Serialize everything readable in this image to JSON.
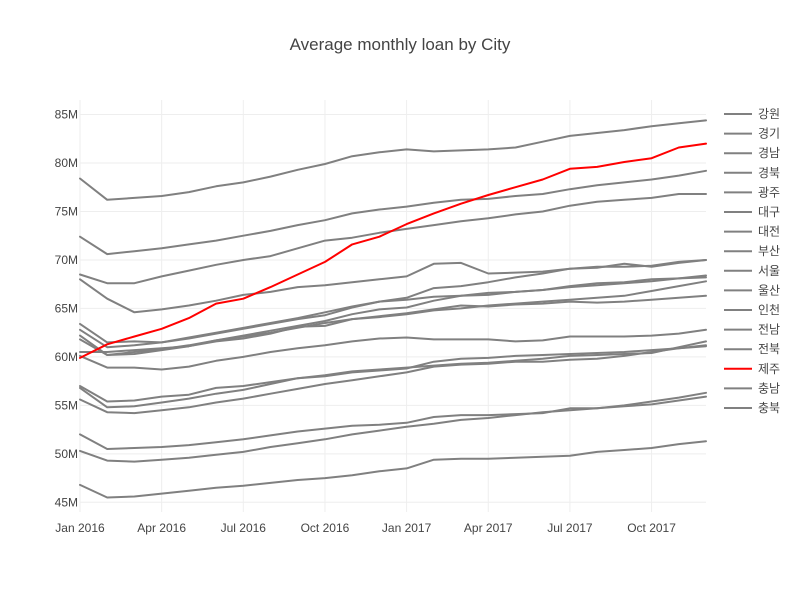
{
  "chart_data": {
    "type": "line",
    "title": "Average monthly loan by City",
    "xlabel": "",
    "ylabel": "",
    "x": [
      "2016-01",
      "2016-02",
      "2016-03",
      "2016-04",
      "2016-05",
      "2016-06",
      "2016-07",
      "2016-08",
      "2016-09",
      "2016-10",
      "2016-11",
      "2016-12",
      "2017-01",
      "2017-02",
      "2017-03",
      "2017-04",
      "2017-05",
      "2017-06",
      "2017-07",
      "2017-08",
      "2017-09",
      "2017-10",
      "2017-11",
      "2017-12"
    ],
    "x_ticks": [
      {
        "x": "2016-01",
        "label": "Jan 2016"
      },
      {
        "x": "2016-04",
        "label": "Apr 2016"
      },
      {
        "x": "2016-07",
        "label": "Jul 2016"
      },
      {
        "x": "2016-10",
        "label": "Oct 2016"
      },
      {
        "x": "2017-01",
        "label": "Jan 2017"
      },
      {
        "x": "2017-04",
        "label": "Apr 2017"
      },
      {
        "x": "2017-07",
        "label": "Jul 2017"
      },
      {
        "x": "2017-10",
        "label": "Oct 2017"
      }
    ],
    "y_ticks": [
      {
        "v": 45,
        "label": "45M"
      },
      {
        "v": 50,
        "label": "50M"
      },
      {
        "v": 55,
        "label": "55M"
      },
      {
        "v": 60,
        "label": "60M"
      },
      {
        "v": 65,
        "label": "65M"
      },
      {
        "v": 70,
        "label": "70M"
      },
      {
        "v": 75,
        "label": "75M"
      },
      {
        "v": 80,
        "label": "80M"
      },
      {
        "v": 85,
        "label": "85M"
      }
    ],
    "y_unit": "M",
    "ylim": [
      44,
      86.5
    ],
    "grid": true,
    "legend_position": "right",
    "colors": {
      "default": "#808080",
      "highlight": "#ff0000"
    },
    "series": [
      {
        "name": "강원",
        "values": [
          78.4,
          76.2,
          76.4,
          76.6,
          77.0,
          77.6,
          78.0,
          78.6,
          79.3,
          79.9,
          80.7,
          81.1,
          81.4,
          81.2,
          81.3,
          81.4,
          81.6,
          82.2,
          82.8,
          83.1,
          83.4,
          83.8,
          84.1,
          84.4
        ]
      },
      {
        "name": "경기",
        "values": [
          72.4,
          70.6,
          70.9,
          71.2,
          71.6,
          72.0,
          72.5,
          73.0,
          73.6,
          74.1,
          74.8,
          75.2,
          75.5,
          75.9,
          76.2,
          76.3,
          76.6,
          76.8,
          77.3,
          77.7,
          78.0,
          78.3,
          78.7,
          79.2
        ]
      },
      {
        "name": "경남",
        "values": [
          68.5,
          67.6,
          67.6,
          68.3,
          68.9,
          69.5,
          70.0,
          70.4,
          71.2,
          72.0,
          72.3,
          72.8,
          73.2,
          73.6,
          74.0,
          74.3,
          74.7,
          75.0,
          75.6,
          76.0,
          76.2,
          76.4,
          76.8,
          76.8
        ]
      },
      {
        "name": "경북",
        "values": [
          68.0,
          66.0,
          64.6,
          64.9,
          65.3,
          65.8,
          66.4,
          66.7,
          67.2,
          67.4,
          67.7,
          68.0,
          68.3,
          69.6,
          69.7,
          68.6,
          68.7,
          68.8,
          69.1,
          69.2,
          69.6,
          69.3,
          69.7,
          70.0
        ]
      },
      {
        "name": "광주",
        "values": [
          63.4,
          61.5,
          61.6,
          61.5,
          61.9,
          62.4,
          62.9,
          63.4,
          63.9,
          64.3,
          65.1,
          65.7,
          66.1,
          67.1,
          67.3,
          67.7,
          68.2,
          68.6,
          69.1,
          69.3,
          69.3,
          69.4,
          69.8,
          70.0
        ]
      },
      {
        "name": "대구",
        "values": [
          62.8,
          61.0,
          61.2,
          61.5,
          62.0,
          62.5,
          63.0,
          63.5,
          64.0,
          64.6,
          65.2,
          65.7,
          65.9,
          66.2,
          66.3,
          66.4,
          66.7,
          66.9,
          67.2,
          67.4,
          67.6,
          67.8,
          68.1,
          68.4
        ]
      },
      {
        "name": "대전",
        "values": [
          62.2,
          60.2,
          60.3,
          60.7,
          61.1,
          61.7,
          62.2,
          62.7,
          63.2,
          63.7,
          64.4,
          64.9,
          65.1,
          65.8,
          66.3,
          66.6,
          66.7,
          66.9,
          67.3,
          67.6,
          67.7,
          68.0,
          68.1,
          68.2
        ]
      },
      {
        "name": "부산",
        "values": [
          61.8,
          60.2,
          60.5,
          60.8,
          61.2,
          61.7,
          62.1,
          62.5,
          63.0,
          63.5,
          63.9,
          64.2,
          64.5,
          64.9,
          65.3,
          65.2,
          65.4,
          65.5,
          65.7,
          65.6,
          65.7,
          65.9,
          66.1,
          66.3
        ]
      },
      {
        "name": "서울",
        "values": [
          60.5,
          60.5,
          60.7,
          60.9,
          61.1,
          61.6,
          61.9,
          62.4,
          63.1,
          63.2,
          63.9,
          64.1,
          64.4,
          64.8,
          65.0,
          65.3,
          65.5,
          65.7,
          65.9,
          66.1,
          66.3,
          66.8,
          67.3,
          67.8
        ]
      },
      {
        "name": "울산",
        "values": [
          60.1,
          58.9,
          58.9,
          58.7,
          59.0,
          59.6,
          60.0,
          60.5,
          60.9,
          61.2,
          61.6,
          61.9,
          62.0,
          61.8,
          61.8,
          61.8,
          61.6,
          61.7,
          62.1,
          62.1,
          62.1,
          62.2,
          62.4,
          62.8
        ]
      },
      {
        "name": "인천",
        "values": [
          57.0,
          55.4,
          55.5,
          55.9,
          56.1,
          56.8,
          57.0,
          57.4,
          57.8,
          58.1,
          58.5,
          58.7,
          58.9,
          59.1,
          59.3,
          59.4,
          59.6,
          59.8,
          60.1,
          60.2,
          60.3,
          60.4,
          61.0,
          61.6
        ]
      },
      {
        "name": "전남",
        "values": [
          56.8,
          54.8,
          54.9,
          55.3,
          55.7,
          56.2,
          56.6,
          57.2,
          57.8,
          58.0,
          58.4,
          58.6,
          58.8,
          59.5,
          59.8,
          59.9,
          60.1,
          60.2,
          60.3,
          60.4,
          60.5,
          60.7,
          60.9,
          61.1
        ]
      },
      {
        "name": "전북",
        "values": [
          55.6,
          54.3,
          54.2,
          54.5,
          54.8,
          55.3,
          55.7,
          56.2,
          56.7,
          57.2,
          57.6,
          58.0,
          58.4,
          59.0,
          59.2,
          59.3,
          59.5,
          59.5,
          59.7,
          59.8,
          60.1,
          60.5,
          60.9,
          61.2
        ]
      },
      {
        "name": "제주",
        "values": [
          59.9,
          61.3,
          62.1,
          62.9,
          64.0,
          65.5,
          66.0,
          67.2,
          68.5,
          69.8,
          71.6,
          72.4,
          73.7,
          74.8,
          75.8,
          76.7,
          77.5,
          78.3,
          79.4,
          79.6,
          80.1,
          80.5,
          81.6,
          82.0
        ]
      },
      {
        "name": "충남",
        "values": [
          52.0,
          50.5,
          50.6,
          50.7,
          50.9,
          51.2,
          51.5,
          51.9,
          52.3,
          52.6,
          52.9,
          53.0,
          53.2,
          53.8,
          54.0,
          54.0,
          54.1,
          54.2,
          54.7,
          54.7,
          55.0,
          55.4,
          55.8,
          56.3
        ]
      },
      {
        "name": "충북",
        "values": [
          50.3,
          49.3,
          49.2,
          49.4,
          49.6,
          49.9,
          50.2,
          50.7,
          51.1,
          51.5,
          52.0,
          52.4,
          52.8,
          53.1,
          53.5,
          53.7,
          54.0,
          54.3,
          54.5,
          54.7,
          54.9,
          55.1,
          55.5,
          55.9
        ]
      },
      {
        "name": "",
        "values": [
          46.8,
          45.5,
          45.6,
          45.9,
          46.2,
          46.5,
          46.7,
          47.0,
          47.3,
          47.5,
          47.8,
          48.2,
          48.5,
          49.4,
          49.5,
          49.5,
          49.6,
          49.7,
          49.8,
          50.2,
          50.4,
          50.6,
          51.0,
          51.3
        ]
      }
    ]
  }
}
